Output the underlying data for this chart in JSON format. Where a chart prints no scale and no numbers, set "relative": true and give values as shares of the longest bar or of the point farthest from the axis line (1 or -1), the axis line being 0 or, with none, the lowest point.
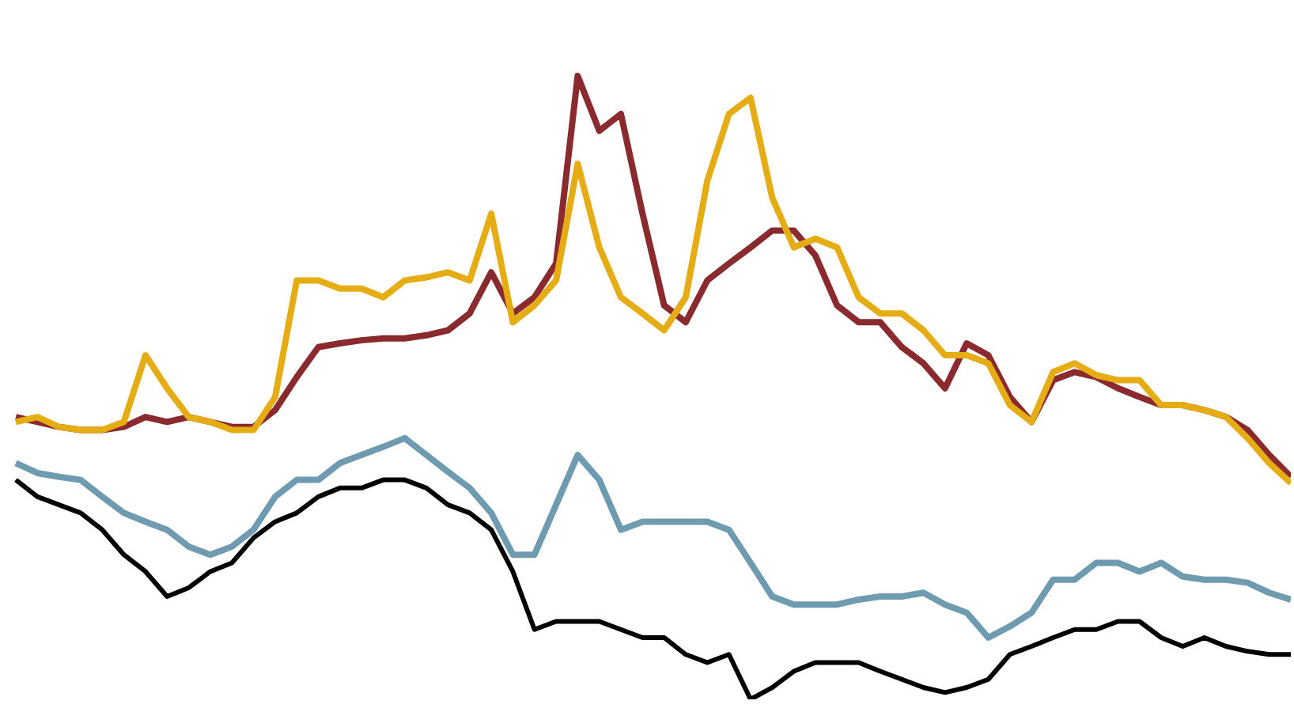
{
  "chart_data": {
    "type": "line",
    "relative": true,
    "categories": [
      null,
      null,
      null,
      null,
      null,
      null,
      null,
      null,
      null,
      null,
      null,
      null,
      null,
      null,
      null,
      null,
      null,
      null,
      null,
      null,
      null,
      null,
      null,
      null,
      null,
      null,
      null,
      null,
      null,
      null,
      null,
      null,
      null,
      null,
      null,
      null,
      null,
      null,
      null,
      null,
      null,
      null,
      null,
      null,
      null,
      null,
      null,
      null,
      null,
      null,
      null,
      null,
      null,
      null,
      null,
      null,
      null,
      null,
      null,
      null
    ],
    "series": [
      {
        "color": "#8b2a2e",
        "values": [
          0.453,
          0.445,
          0.437,
          0.432,
          0.432,
          0.437,
          0.453,
          0.445,
          0.453,
          0.445,
          0.437,
          0.437,
          0.464,
          0.517,
          0.565,
          0.571,
          0.576,
          0.579,
          0.579,
          0.584,
          0.592,
          0.619,
          0.685,
          0.619,
          0.645,
          0.699,
          1,
          0.912,
          0.939,
          0.779,
          0.632,
          0.605,
          0.672,
          0.699,
          0.725,
          0.752,
          0.752,
          0.712,
          0.632,
          0.605,
          0.605,
          0.565,
          0.539,
          0.499,
          0.571,
          0.552,
          0.485,
          0.445,
          0.512,
          0.525,
          0.517,
          0.499,
          0.485,
          0.472,
          0.472,
          0.464,
          0.453,
          0.432,
          0.392,
          0.357
        ]
      },
      {
        "color": "#e6ac14",
        "values": [
          0.445,
          0.453,
          0.437,
          0.432,
          0.432,
          0.445,
          0.552,
          0.499,
          0.453,
          0.445,
          0.432,
          0.432,
          0.485,
          0.672,
          0.672,
          0.659,
          0.659,
          0.645,
          0.672,
          0.677,
          0.685,
          0.672,
          0.779,
          0.605,
          0.632,
          0.672,
          0.859,
          0.725,
          0.645,
          0.619,
          0.592,
          0.645,
          0.832,
          0.939,
          0.965,
          0.805,
          0.725,
          0.739,
          0.725,
          0.645,
          0.619,
          0.619,
          0.592,
          0.552,
          0.552,
          0.539,
          0.472,
          0.445,
          0.525,
          0.539,
          0.52,
          0.512,
          0.512,
          0.472,
          0.472,
          0.464,
          0.453,
          0.419,
          0.379,
          0.347
        ]
      },
      {
        "color": "#6e9bb0",
        "values": [
          0.379,
          0.363,
          0.357,
          0.352,
          0.325,
          0.299,
          0.285,
          0.272,
          0.245,
          0.232,
          0.245,
          0.272,
          0.325,
          0.352,
          0.352,
          0.379,
          0.392,
          0.405,
          0.419,
          0.392,
          0.365,
          0.339,
          0.299,
          0.232,
          0.232,
          0.312,
          0.392,
          0.352,
          0.272,
          0.285,
          0.285,
          0.285,
          0.285,
          0.272,
          0.219,
          0.165,
          0.152,
          0.152,
          0.152,
          0.16,
          0.165,
          0.165,
          0.171,
          0.152,
          0.139,
          0.099,
          0.117,
          0.139,
          0.192,
          0.192,
          0.219,
          0.219,
          0.205,
          0.219,
          0.197,
          0.192,
          0.192,
          0.187,
          0.171,
          0.16
        ]
      },
      {
        "color": "#000000",
        "values": [
          0.352,
          0.325,
          0.312,
          0.299,
          0.272,
          0.232,
          0.205,
          0.165,
          0.179,
          0.205,
          0.219,
          0.259,
          0.285,
          0.299,
          0.325,
          0.339,
          0.339,
          0.352,
          0.352,
          0.339,
          0.312,
          0.299,
          0.272,
          0.205,
          0.112,
          0.125,
          0.125,
          0.125,
          0.112,
          0.099,
          0.099,
          0.072,
          0.059,
          0.072,
          0,
          0.019,
          0.045,
          0.059,
          0.059,
          0.059,
          0.045,
          0.032,
          0.019,
          0.011,
          0.019,
          0.032,
          0.072,
          0.085,
          0.099,
          0.112,
          0.112,
          0.125,
          0.125,
          0.099,
          0.085,
          0.099,
          0.085,
          0.077,
          0.072,
          0.072
        ]
      }
    ]
  }
}
